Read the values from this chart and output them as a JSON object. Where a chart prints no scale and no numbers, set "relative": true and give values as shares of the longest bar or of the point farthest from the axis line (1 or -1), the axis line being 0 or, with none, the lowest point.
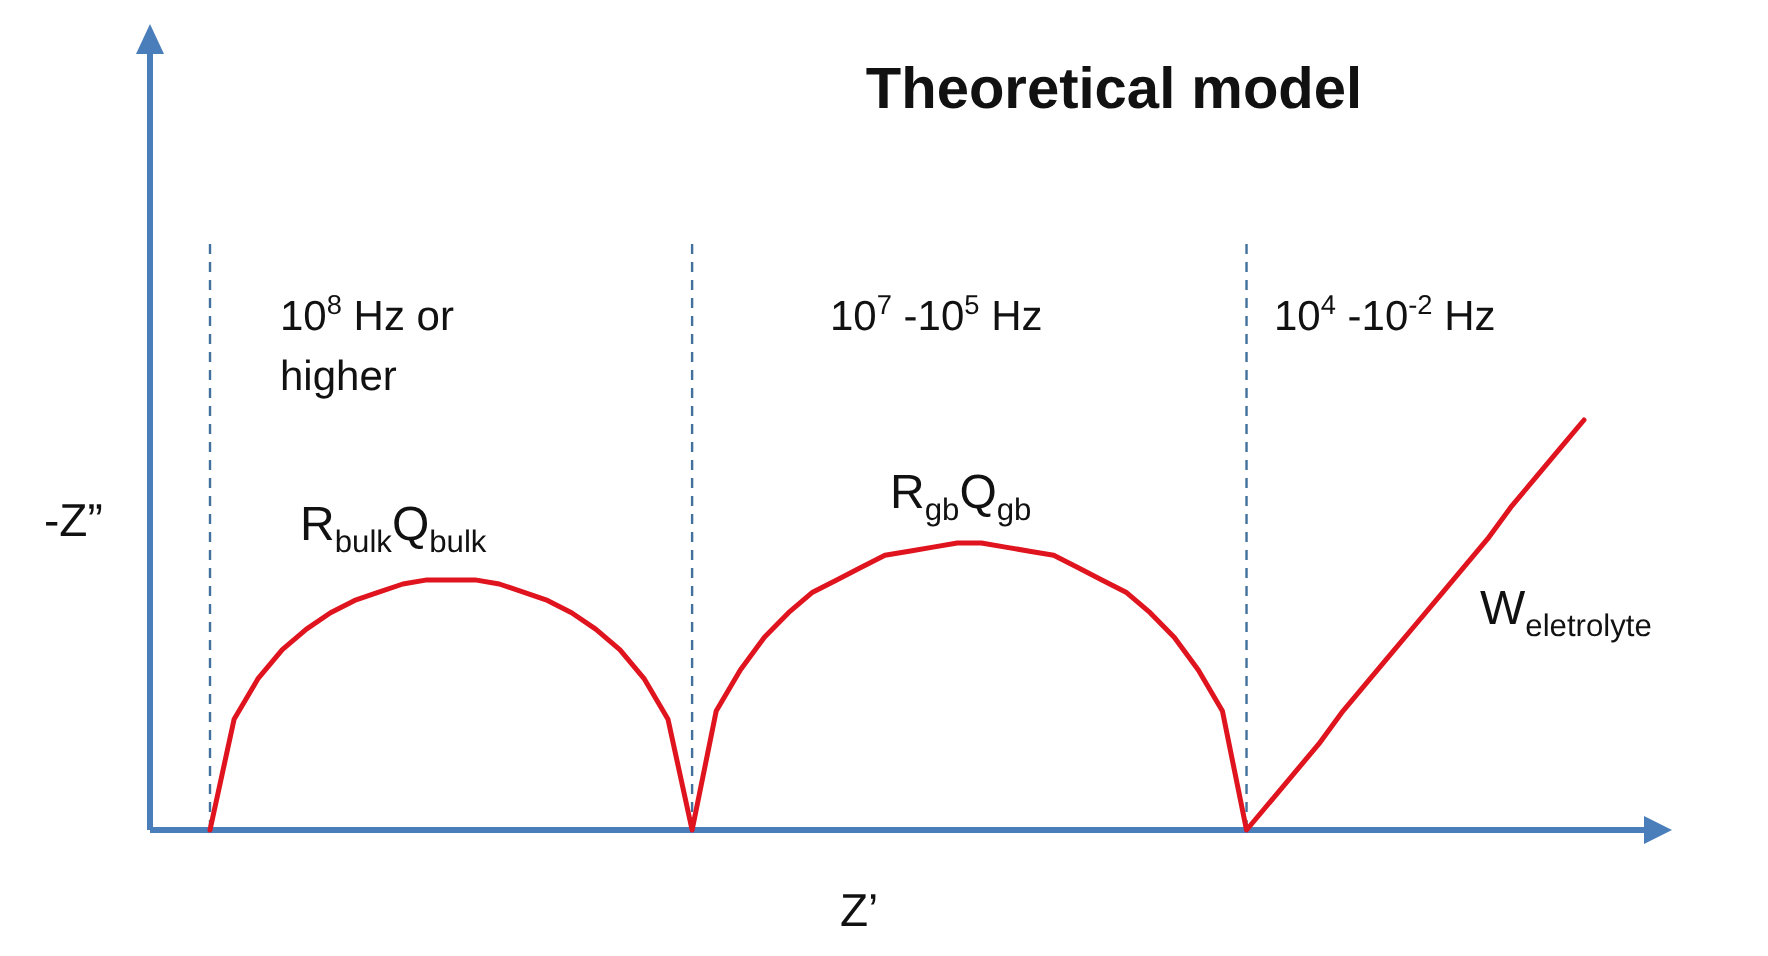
{
  "chart_data": {
    "type": "line",
    "relative": true,
    "title": "Theoretical model",
    "xlabel": "Z’",
    "ylabel": "-Z”",
    "categories": [
      null,
      null,
      null,
      null,
      null,
      null,
      null,
      null,
      null,
      null,
      null,
      null,
      null,
      null,
      null,
      null,
      null,
      null,
      null,
      null,
      null,
      null,
      null,
      null,
      null,
      null,
      null,
      null,
      null,
      null,
      null,
      null,
      null,
      null,
      null,
      null,
      null,
      null,
      null,
      null,
      null,
      null,
      null,
      null,
      null,
      null,
      null,
      null,
      null,
      null,
      null,
      null,
      null,
      null,
      null,
      null,
      null,
      null
    ],
    "series": [
      {
        "color": "#e0141e",
        "values": [
          0,
          0.27,
          0.37,
          0.44,
          0.49,
          0.53,
          0.56,
          0.58,
          0.6,
          0.61,
          0.61,
          0.61,
          0.6,
          0.58,
          0.56,
          0.53,
          0.49,
          0.44,
          0.37,
          0.27,
          0,
          0.29,
          0.39,
          0.47,
          0.53,
          0.58,
          0.61,
          0.64,
          0.67,
          0.68,
          0.69,
          0.7,
          0.7,
          0.69,
          0.68,
          0.67,
          0.64,
          0.61,
          0.58,
          0.53,
          0.47,
          0.39,
          0.29,
          0,
          0.07,
          0.14,
          0.21,
          0.29,
          0.36,
          0.43,
          0.5,
          0.57,
          0.64,
          0.71,
          0.79,
          0.86,
          0.93,
          1
        ]
      }
    ],
    "line_style": "solid",
    "marker": "none",
    "grid": "x",
    "legend": false,
    "tick_labels": false,
    "annotations": [
      "10$^{8}$ Hz or higher",
      "10$^{7}$ -10$^{5}$ Hz",
      "10$^{4}$ -10$^{-2}$ Hz",
      "R$_{bulk}$Q$_{bulk}$",
      "R$_{gb}$Q$_{gb}$",
      "W$_{eletrolyte}$"
    ]
  }
}
